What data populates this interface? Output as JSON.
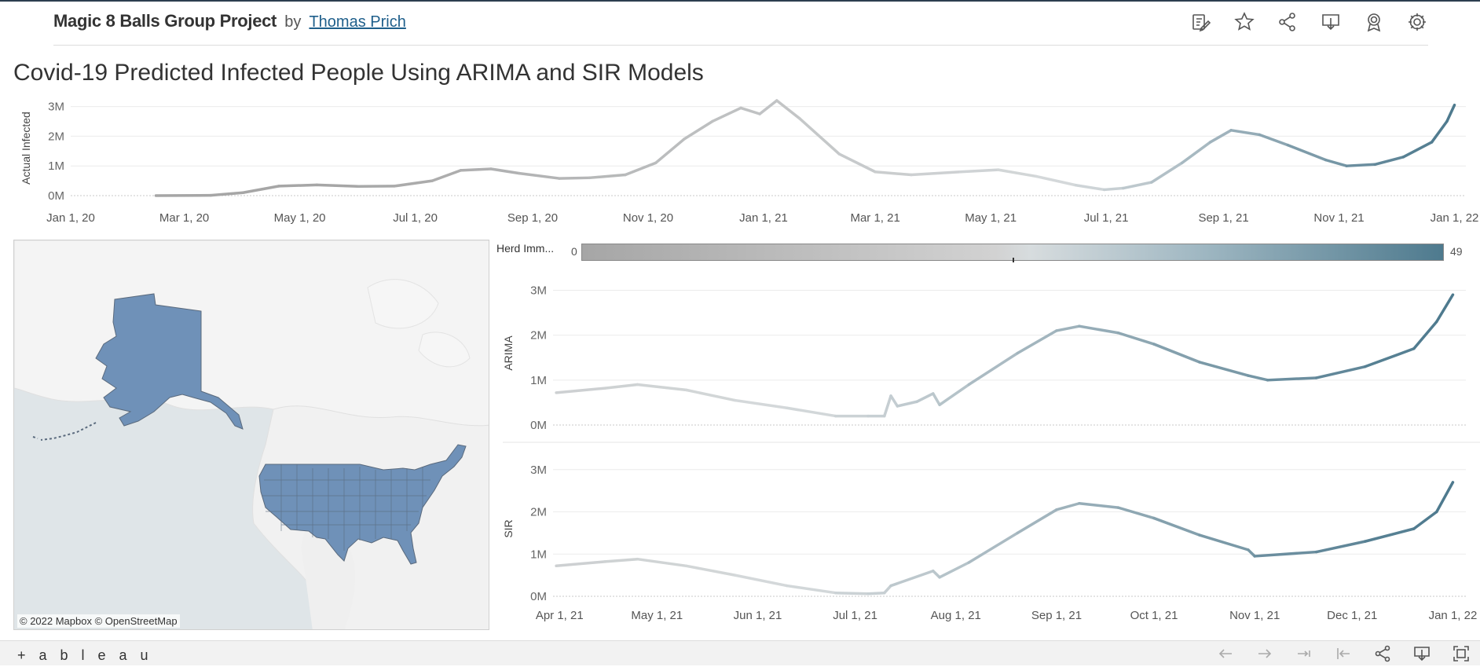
{
  "header": {
    "project_title": "Magic 8 Balls Group Project",
    "by": "by",
    "author": "Thomas Prich",
    "icons": [
      "edit-icon",
      "star-icon",
      "share-icon",
      "download-icon",
      "badge-icon",
      "gear-icon"
    ]
  },
  "dashboard_title": "Covid-19 Predicted Infected People Using ARIMA and SIR Models",
  "map": {
    "attribution": "© 2022 Mapbox  © OpenStreetMap",
    "fill_color": "#6f91b8"
  },
  "legend": {
    "label": "Herd Imm...",
    "min": "0",
    "max": "49",
    "color_low": "#a6a6a6",
    "color_mid": "#d5d9db",
    "color_high": "#4e7a8e"
  },
  "footer": {
    "logo": "+ a b l e a u",
    "icons": [
      "undo-icon",
      "redo-icon",
      "replay-icon",
      "revert-icon",
      "share-icon",
      "download-icon",
      "fullscreen-icon"
    ]
  },
  "chart_data": [
    {
      "type": "line",
      "ylabel": "Actual Infected",
      "ylim": [
        0,
        3200000
      ],
      "y_ticks": [
        "0M",
        "1M",
        "2M",
        "3M"
      ],
      "x_ticks": [
        "Jan 1, 20",
        "Mar 1, 20",
        "May 1, 20",
        "Jul 1, 20",
        "Sep 1, 20",
        "Nov 1, 20",
        "Jan 1, 21",
        "Mar 1, 21",
        "May 1, 21",
        "Jul 1, 21",
        "Sep 1, 21",
        "Nov 1, 21",
        "Jan 1, 22"
      ],
      "x_range": [
        "2020-01-01",
        "2022-01-07"
      ],
      "color_encoding": "Herd Immunity (0-49)",
      "series": [
        {
          "points": [
            [
              "2020-02-15",
              0
            ],
            [
              "2020-03-15",
              10000
            ],
            [
              "2020-04-01",
              100000
            ],
            [
              "2020-04-20",
              320000
            ],
            [
              "2020-05-10",
              360000
            ],
            [
              "2020-06-01",
              310000
            ],
            [
              "2020-06-20",
              320000
            ],
            [
              "2020-07-10",
              500000
            ],
            [
              "2020-07-25",
              850000
            ],
            [
              "2020-08-10",
              900000
            ],
            [
              "2020-08-25",
              750000
            ],
            [
              "2020-09-15",
              580000
            ],
            [
              "2020-10-01",
              600000
            ],
            [
              "2020-10-20",
              700000
            ],
            [
              "2020-11-05",
              1100000
            ],
            [
              "2020-11-20",
              1900000
            ],
            [
              "2020-12-05",
              2500000
            ],
            [
              "2020-12-20",
              2950000
            ],
            [
              "2020-12-30",
              2750000
            ],
            [
              "2021-01-08",
              3200000
            ],
            [
              "2021-01-20",
              2600000
            ],
            [
              "2021-02-10",
              1400000
            ],
            [
              "2021-03-01",
              800000
            ],
            [
              "2021-03-20",
              700000
            ],
            [
              "2021-04-15",
              800000
            ],
            [
              "2021-05-05",
              870000
            ],
            [
              "2021-05-25",
              650000
            ],
            [
              "2021-06-15",
              350000
            ],
            [
              "2021-06-30",
              200000
            ],
            [
              "2021-07-10",
              250000
            ],
            [
              "2021-07-25",
              450000
            ],
            [
              "2021-08-10",
              1100000
            ],
            [
              "2021-08-25",
              1800000
            ],
            [
              "2021-09-05",
              2200000
            ],
            [
              "2021-09-20",
              2050000
            ],
            [
              "2021-10-05",
              1700000
            ],
            [
              "2021-10-25",
              1200000
            ],
            [
              "2021-11-05",
              1000000
            ],
            [
              "2021-11-20",
              1050000
            ],
            [
              "2021-12-05",
              1300000
            ],
            [
              "2021-12-20",
              1800000
            ],
            [
              "2021-12-28",
              2500000
            ],
            [
              "2022-01-01",
              3050000
            ]
          ]
        }
      ]
    },
    {
      "type": "line",
      "ylabel": "ARIMA",
      "ylim": [
        0,
        3200000
      ],
      "y_ticks": [
        "0M",
        "1M",
        "2M",
        "3M"
      ],
      "x_ticks": [
        "Apr 1, 21",
        "May 1, 21",
        "Jun 1, 21",
        "Jul 1, 21",
        "Aug 1, 21",
        "Sep 1, 21",
        "Oct 1, 21",
        "Nov 1, 21",
        "Dec 1, 21",
        "Jan 1, 22"
      ],
      "x_range": [
        "2021-03-30",
        "2022-01-05"
      ],
      "color_encoding": "Herd Immunity (0-49)",
      "series": [
        {
          "points": [
            [
              "2021-03-31",
              720000
            ],
            [
              "2021-04-15",
              820000
            ],
            [
              "2021-04-25",
              900000
            ],
            [
              "2021-05-10",
              780000
            ],
            [
              "2021-05-25",
              550000
            ],
            [
              "2021-06-10",
              380000
            ],
            [
              "2021-06-25",
              200000
            ],
            [
              "2021-07-05",
              200000
            ],
            [
              "2021-07-10",
              200000
            ],
            [
              "2021-07-12",
              650000
            ],
            [
              "2021-07-14",
              420000
            ],
            [
              "2021-07-20",
              520000
            ],
            [
              "2021-07-25",
              700000
            ],
            [
              "2021-07-27",
              450000
            ],
            [
              "2021-08-05",
              900000
            ],
            [
              "2021-08-20",
              1600000
            ],
            [
              "2021-09-01",
              2100000
            ],
            [
              "2021-09-08",
              2200000
            ],
            [
              "2021-09-20",
              2050000
            ],
            [
              "2021-10-01",
              1800000
            ],
            [
              "2021-10-15",
              1400000
            ],
            [
              "2021-10-30",
              1100000
            ],
            [
              "2021-11-05",
              1000000
            ],
            [
              "2021-11-20",
              1050000
            ],
            [
              "2021-12-05",
              1300000
            ],
            [
              "2021-12-20",
              1700000
            ],
            [
              "2021-12-27",
              2300000
            ],
            [
              "2022-01-01",
              2900000
            ]
          ]
        }
      ]
    },
    {
      "type": "line",
      "ylabel": "SIR",
      "ylim": [
        0,
        3200000
      ],
      "y_ticks": [
        "0M",
        "1M",
        "2M",
        "3M"
      ],
      "x_ticks": [
        "Apr 1, 21",
        "May 1, 21",
        "Jun 1, 21",
        "Jul 1, 21",
        "Aug 1, 21",
        "Sep 1, 21",
        "Oct 1, 21",
        "Nov 1, 21",
        "Dec 1, 21",
        "Jan 1, 22"
      ],
      "x_range": [
        "2021-03-30",
        "2022-01-05"
      ],
      "color_encoding": "Herd Immunity (0-49)",
      "series": [
        {
          "points": [
            [
              "2021-03-31",
              720000
            ],
            [
              "2021-04-15",
              820000
            ],
            [
              "2021-04-25",
              880000
            ],
            [
              "2021-05-10",
              720000
            ],
            [
              "2021-05-25",
              500000
            ],
            [
              "2021-06-10",
              250000
            ],
            [
              "2021-06-25",
              80000
            ],
            [
              "2021-07-05",
              60000
            ],
            [
              "2021-07-10",
              80000
            ],
            [
              "2021-07-12",
              250000
            ],
            [
              "2021-07-25",
              600000
            ],
            [
              "2021-07-27",
              450000
            ],
            [
              "2021-08-05",
              800000
            ],
            [
              "2021-08-20",
              1500000
            ],
            [
              "2021-09-01",
              2050000
            ],
            [
              "2021-09-08",
              2200000
            ],
            [
              "2021-09-20",
              2100000
            ],
            [
              "2021-10-01",
              1850000
            ],
            [
              "2021-10-15",
              1450000
            ],
            [
              "2021-10-30",
              1100000
            ],
            [
              "2021-11-01",
              950000
            ],
            [
              "2021-11-20",
              1050000
            ],
            [
              "2021-12-05",
              1300000
            ],
            [
              "2021-12-20",
              1600000
            ],
            [
              "2021-12-27",
              2000000
            ],
            [
              "2022-01-01",
              2700000
            ]
          ]
        }
      ]
    }
  ]
}
